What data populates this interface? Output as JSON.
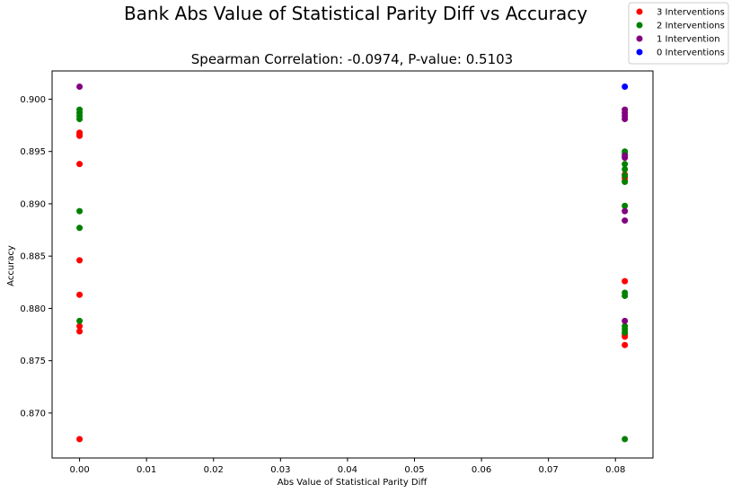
{
  "chart_data": {
    "type": "scatter",
    "title": "Bank Abs Value of Statistical Parity Diff vs Accuracy",
    "subtitle": "Spearman Correlation: -0.0974, P-value: 0.5103",
    "xlabel": "Abs Value of Statistical Parity Diff",
    "ylabel": "Accuracy",
    "xlim": [
      -0.0041,
      0.0856
    ],
    "ylim": [
      0.8657,
      0.9027
    ],
    "xticks": [
      0.0,
      0.01,
      0.02,
      0.03,
      0.04,
      0.05,
      0.06,
      0.07,
      0.08
    ],
    "xtick_labels": [
      "0.00",
      "0.01",
      "0.02",
      "0.03",
      "0.04",
      "0.05",
      "0.06",
      "0.07",
      "0.08"
    ],
    "yticks": [
      0.87,
      0.875,
      0.88,
      0.885,
      0.89,
      0.895,
      0.9
    ],
    "ytick_labels": [
      "0.870",
      "0.875",
      "0.880",
      "0.885",
      "0.890",
      "0.895",
      "0.900"
    ],
    "grid": false,
    "legend_position": "top-right",
    "series": [
      {
        "name": "3 Interventions",
        "color": "#ff0000",
        "points": [
          [
            0.0,
            0.8968
          ],
          [
            0.0,
            0.8966
          ],
          [
            0.0,
            0.8965
          ],
          [
            0.0,
            0.8938
          ],
          [
            0.0,
            0.8846
          ],
          [
            0.0,
            0.8813
          ],
          [
            0.0,
            0.8783
          ],
          [
            0.0,
            0.8778
          ],
          [
            0.0,
            0.8675
          ],
          [
            0.0814,
            0.8928
          ],
          [
            0.0814,
            0.8925
          ],
          [
            0.0814,
            0.8922
          ],
          [
            0.0814,
            0.8826
          ],
          [
            0.0814,
            0.8775
          ],
          [
            0.0814,
            0.8773
          ],
          [
            0.0814,
            0.8765
          ]
        ]
      },
      {
        "name": "2 Interventions",
        "color": "#008000",
        "points": [
          [
            0.0,
            0.899
          ],
          [
            0.0,
            0.8987
          ],
          [
            0.0,
            0.8984
          ],
          [
            0.0,
            0.8981
          ],
          [
            0.0,
            0.8893
          ],
          [
            0.0,
            0.8877
          ],
          [
            0.0,
            0.8788
          ],
          [
            0.0814,
            0.895
          ],
          [
            0.0814,
            0.8948
          ],
          [
            0.0814,
            0.8938
          ],
          [
            0.0814,
            0.8933
          ],
          [
            0.0814,
            0.8927
          ],
          [
            0.0814,
            0.8921
          ],
          [
            0.0814,
            0.8898
          ],
          [
            0.0814,
            0.8815
          ],
          [
            0.0814,
            0.8812
          ],
          [
            0.0814,
            0.8783
          ],
          [
            0.0814,
            0.878
          ],
          [
            0.0814,
            0.8777
          ],
          [
            0.0814,
            0.8675
          ]
        ]
      },
      {
        "name": "1 Intervention",
        "color": "#800080",
        "points": [
          [
            0.0,
            0.9012
          ],
          [
            0.0814,
            0.899
          ],
          [
            0.0814,
            0.8987
          ],
          [
            0.0814,
            0.8984
          ],
          [
            0.0814,
            0.8981
          ],
          [
            0.0814,
            0.8946
          ],
          [
            0.0814,
            0.8944
          ],
          [
            0.0814,
            0.8893
          ],
          [
            0.0814,
            0.8884
          ],
          [
            0.0814,
            0.8788
          ]
        ]
      },
      {
        "name": "0 Interventions",
        "color": "#0000ff",
        "points": [
          [
            0.0814,
            0.9012
          ]
        ]
      }
    ]
  }
}
